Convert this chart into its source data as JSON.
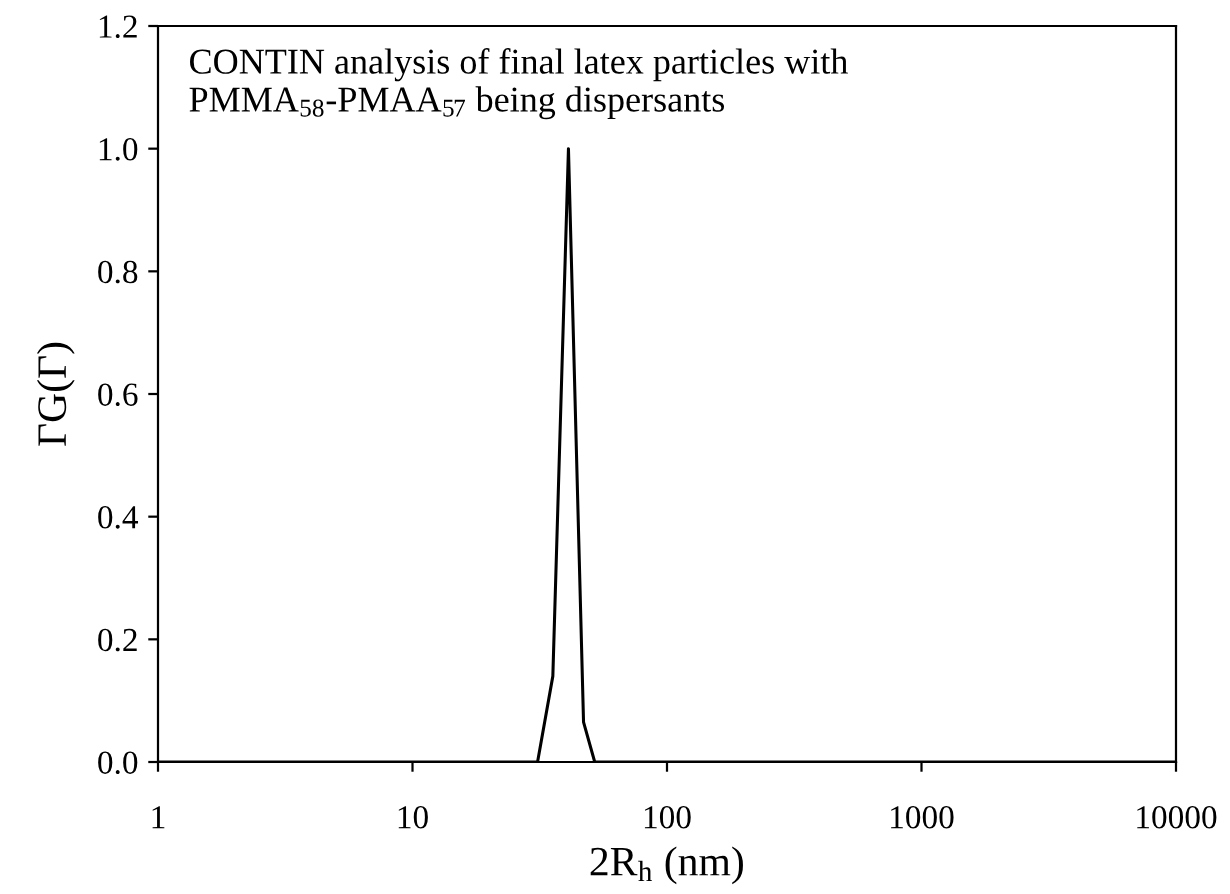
{
  "chart_data": {
    "type": "line",
    "annotations": [
      "CONTIN analysis of final latex particles with\nPMMA$_{58}$-PMAA$_{57}$ being dispersants"
    ],
    "xlabel": "2R$_{h}$ (nm)",
    "ylabel": "ΓG(Γ)",
    "x": [
      1,
      10,
      31,
      35.6,
      41,
      47,
      52,
      100,
      1000,
      10000
    ],
    "series": [
      {
        "color": "#000000",
        "values": [
          0,
          0,
          0,
          0.14,
          1.0,
          0.065,
          0,
          0,
          0,
          0
        ]
      }
    ],
    "log": "x",
    "xlim": [
      1,
      10000
    ],
    "xticks": [
      1,
      10,
      100,
      1000,
      10000
    ],
    "ylim": [
      0,
      1.2
    ],
    "yticks": [
      {
        "value": 0,
        "label": "0.0"
      },
      {
        "value": 0.2,
        "label": "0.2"
      },
      {
        "value": 0.4,
        "label": "0.4"
      },
      {
        "value": 0.6,
        "label": "0.6"
      },
      {
        "value": 0.8,
        "label": "0.8"
      },
      {
        "value": 1.0,
        "label": "1.0"
      },
      {
        "value": 1.2,
        "label": "1.2"
      }
    ],
    "grid": false,
    "marker": "none",
    "line_style": "solid"
  }
}
